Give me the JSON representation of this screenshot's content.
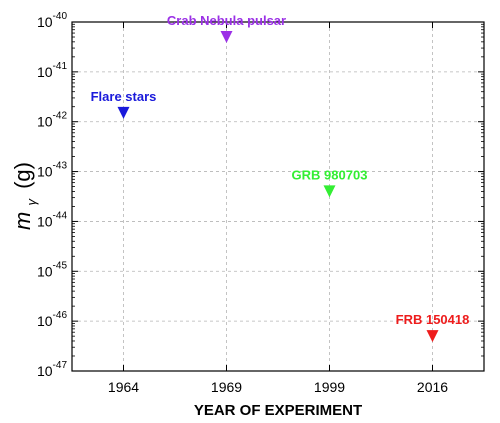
{
  "chart_data": {
    "type": "scatter",
    "title": "",
    "xlabel": "YEAR OF EXPERIMENT",
    "ylabel": {
      "symbol": "m",
      "subscript": "γ",
      "unit": "(g)"
    },
    "log_y": true,
    "ylim": [
      1e-47,
      1e-40
    ],
    "y_tick_exponents": [
      -40,
      -41,
      -42,
      -43,
      -44,
      -45,
      -46,
      -47
    ],
    "y_tick_base": "10",
    "categories": [
      "1964",
      "1969",
      "1999",
      "2016"
    ],
    "grid": true,
    "marker": "triangle-down",
    "points": [
      {
        "x": "1964",
        "y": 1.5e-42,
        "label": "Flare stars",
        "color": "#1a1adb"
      },
      {
        "x": "1969",
        "y": 5e-41,
        "label": "Crab Nebula pulsar",
        "color": "#9b30e6"
      },
      {
        "x": "1999",
        "y": 4e-44,
        "label": "GRB 980703",
        "color": "#33ee33"
      },
      {
        "x": "2016",
        "y": 5e-47,
        "label": "FRB 150418",
        "color": "#ee1c1c"
      }
    ]
  }
}
